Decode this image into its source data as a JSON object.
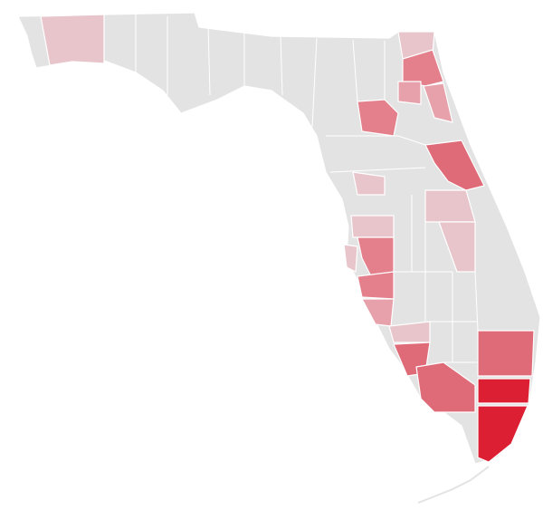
{
  "map": {
    "base_color": "#e3e3e3",
    "regions": [
      {
        "color": "#e8c5ca"
      },
      {
        "color": "#e8c5ca"
      },
      {
        "color": "#e3808c"
      },
      {
        "color": "#e6a1ab"
      },
      {
        "color": "#e6a1ab"
      },
      {
        "color": "#e3808c"
      },
      {
        "color": "#e06b78"
      },
      {
        "color": "#e8c5ca"
      },
      {
        "color": "#e8c5ca"
      },
      {
        "color": "#e8c5ca"
      },
      {
        "color": "#e8c5ca"
      },
      {
        "color": "#e3808c"
      },
      {
        "color": "#e8c5ca"
      },
      {
        "color": "#e3808c"
      },
      {
        "color": "#e6a1ab"
      },
      {
        "color": "#e8c5ca"
      },
      {
        "color": "#e06b78"
      },
      {
        "color": "#e06b78"
      },
      {
        "color": "#e06b78"
      },
      {
        "color": "#dc1f32"
      },
      {
        "color": "#dc1f32"
      }
    ]
  }
}
